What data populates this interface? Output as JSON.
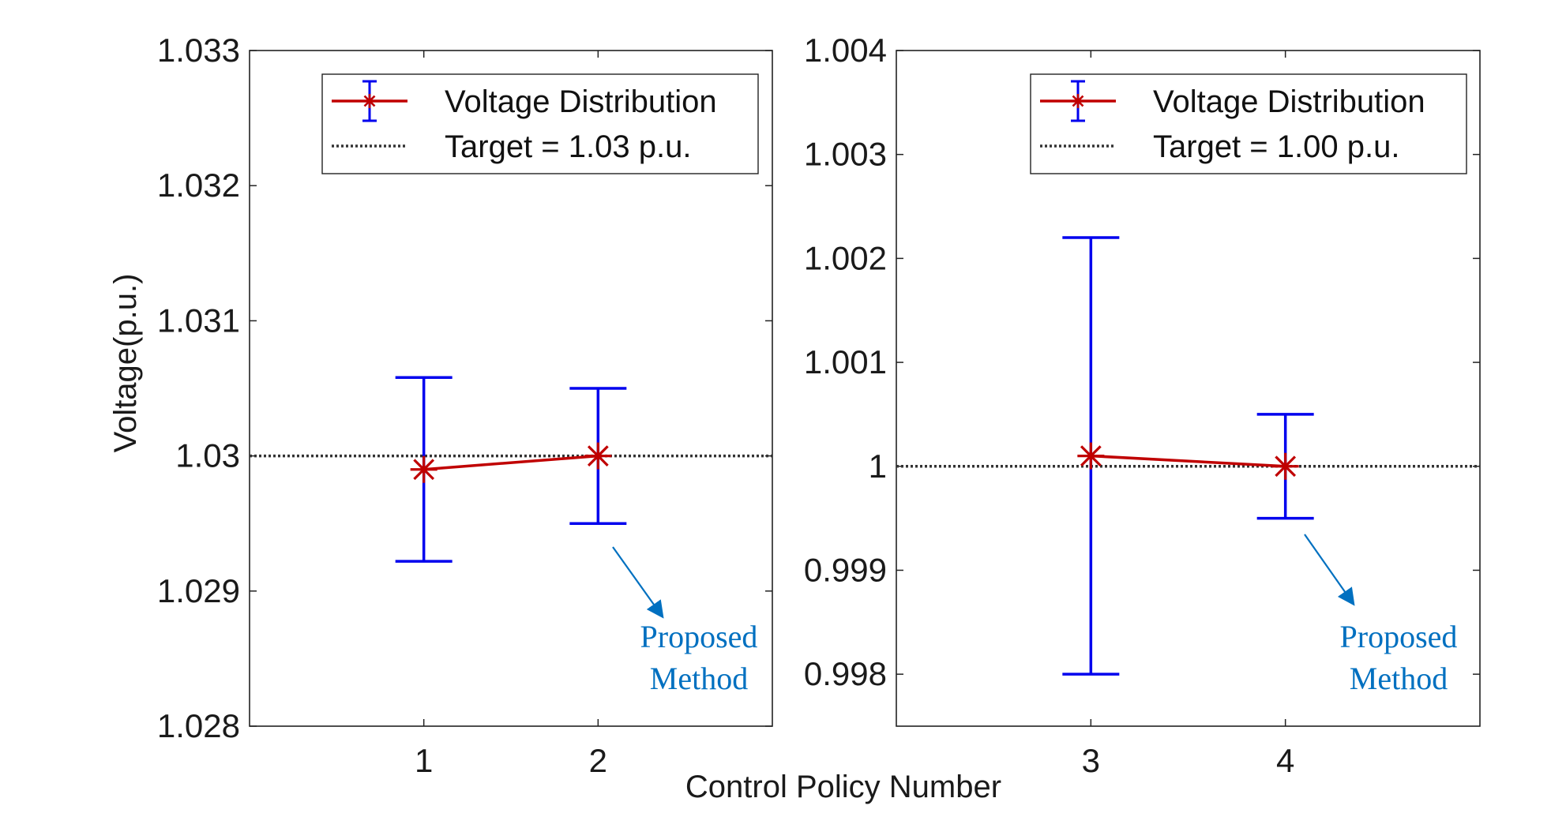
{
  "figure": {
    "ylabel": "Voltage(p.u.)",
    "xlabel": "Control Policy Number"
  },
  "chart_data": [
    {
      "type": "line",
      "x": [
        1,
        2
      ],
      "xticks": [
        "1",
        "2"
      ],
      "xlim": [
        0,
        3
      ],
      "ylim": [
        1.028,
        1.033
      ],
      "yticks": [
        "1.028",
        "1.029",
        "1.03",
        "1.031",
        "1.032",
        "1.033"
      ],
      "series": [
        {
          "name": "Voltage Distribution",
          "values": [
            1.0299,
            1.03
          ],
          "error_low": [
            1.02922,
            1.0295
          ],
          "error_high": [
            1.03058,
            1.0305
          ],
          "color": "#c00000",
          "errorbar_color": "#0000ee"
        }
      ],
      "reference_line": {
        "label": "Target = 1.03 p.u.",
        "y": 1.03,
        "style": "dotted",
        "color": "#333333"
      },
      "annotation": {
        "lines": [
          "Proposed",
          "Method"
        ],
        "target_x": 2,
        "color": "#0070c0"
      },
      "legend_position": "top-right",
      "grid": false
    },
    {
      "type": "line",
      "x": [
        3,
        4
      ],
      "xticks": [
        "3",
        "4"
      ],
      "xlim": [
        2,
        5
      ],
      "ylim": [
        0.9975,
        1.004
      ],
      "yticks": [
        "0.998",
        "0.999",
        "1",
        "1.001",
        "1.002",
        "1.003",
        "1.004"
      ],
      "series": [
        {
          "name": "Voltage Distribution",
          "values": [
            1.0001,
            1.0
          ],
          "error_low": [
            0.998,
            0.9995
          ],
          "error_high": [
            1.0022,
            1.0005
          ],
          "color": "#c00000",
          "errorbar_color": "#0000ee"
        }
      ],
      "reference_line": {
        "label": "Target = 1.00 p.u.",
        "y": 1.0,
        "style": "dotted",
        "color": "#333333"
      },
      "annotation": {
        "lines": [
          "Proposed",
          "Method"
        ],
        "target_x": 4,
        "color": "#0070c0"
      },
      "legend_position": "top-right",
      "grid": false
    }
  ]
}
